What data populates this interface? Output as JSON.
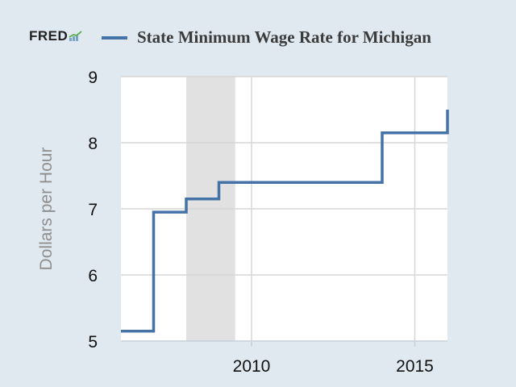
{
  "header": {
    "logo_text": "FRED",
    "logo_mark": "fred-chart-icon"
  },
  "colors": {
    "background": "#e1e9f0",
    "plot_background": "#ffffff",
    "series": "#4572a7",
    "recession": "#e1e1e1",
    "grid": "#d6d6d6"
  },
  "chart_data": {
    "type": "line",
    "step": true,
    "title": "",
    "xlabel": "",
    "ylabel": "Dollars per Hour",
    "xlim": [
      2006.0,
      2016.0
    ],
    "ylim": [
      5,
      9
    ],
    "x_ticks": [
      2010,
      2015
    ],
    "y_ticks": [
      5,
      6,
      7,
      8,
      9
    ],
    "grid": true,
    "recession_shading": [
      [
        2008.0,
        2009.5
      ]
    ],
    "series": [
      {
        "name": "State Minimum Wage Rate for Michigan",
        "x": [
          2006.0,
          2007.0,
          2008.0,
          2009.0,
          2014.0,
          2016.0
        ],
        "y": [
          5.15,
          6.95,
          7.15,
          7.4,
          8.15,
          8.5
        ]
      }
    ]
  }
}
